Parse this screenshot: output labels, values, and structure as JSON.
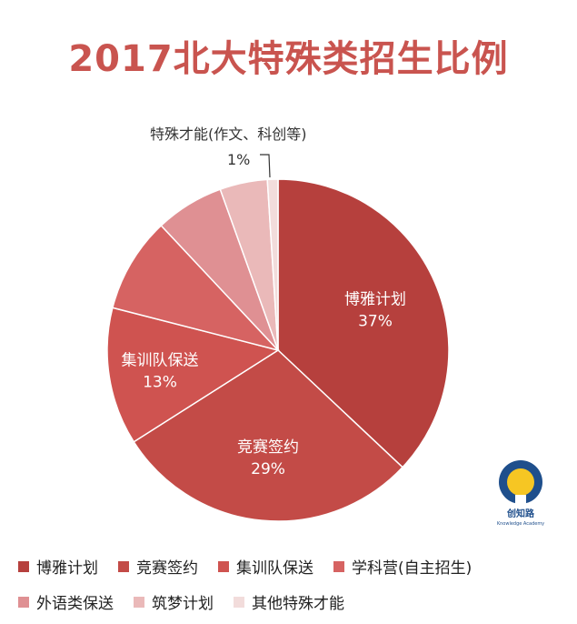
{
  "title": "2017北大特殊类招生比例",
  "chart_data": {
    "type": "pie",
    "title": "2017北大特殊类招生比例",
    "slices": [
      {
        "label": "博雅计划",
        "value": 37,
        "display": "37%",
        "color": "#b6403d"
      },
      {
        "label": "竞赛签约",
        "value": 29,
        "display": "29%",
        "color": "#c34b47"
      },
      {
        "label": "集训队保送",
        "value": 13,
        "display": "13%",
        "color": "#cf5350"
      },
      {
        "label": "学科营(自主招生)",
        "value": 9,
        "display": "",
        "color": "#d66362"
      },
      {
        "label": "外语类保送",
        "value": 6.5,
        "display": "",
        "color": "#df9093"
      },
      {
        "label": "筑梦计划",
        "value": 4.5,
        "display": "",
        "color": "#eab9b9"
      },
      {
        "label": "其他特殊才能",
        "value": 1,
        "display": "1%",
        "color": "#f2dcdb"
      }
    ],
    "legend": "bottom",
    "annotation": {
      "text": "特殊才能(作文、科创等)",
      "value_text": "1%"
    }
  },
  "logo": {
    "text": "创知路",
    "subtext": "Knowledge Academy",
    "icon": "lightbulb-logo"
  }
}
